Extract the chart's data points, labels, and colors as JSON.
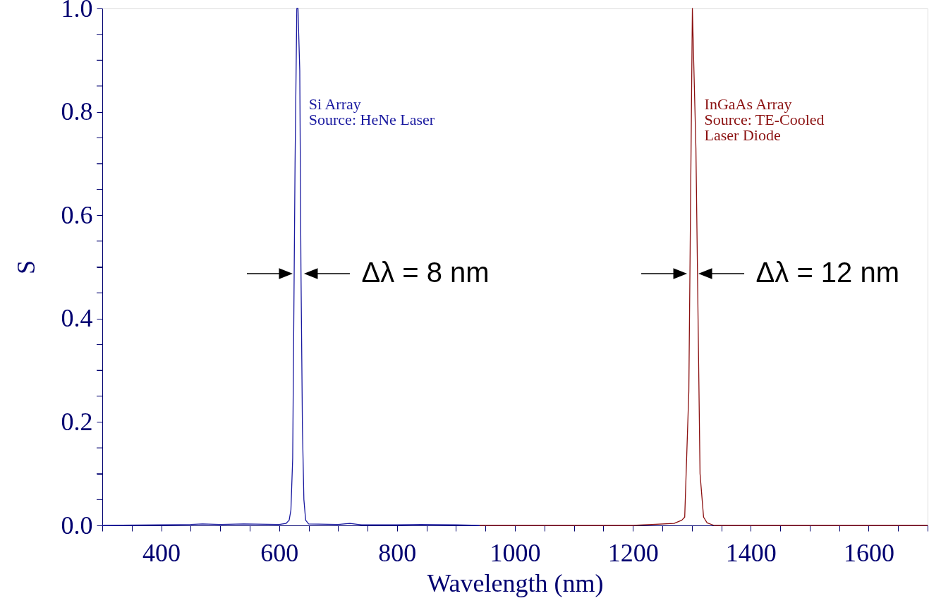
{
  "chart_data": {
    "type": "line",
    "xlabel": "Wavelength (nm)",
    "ylabel": "S",
    "xlim": [
      300,
      1700
    ],
    "ylim": [
      0,
      1.0
    ],
    "xticks": [
      {
        "value": 300,
        "label": null
      },
      {
        "value": 350,
        "label": null
      },
      400,
      {
        "value": 450,
        "label": null
      },
      {
        "value": 500,
        "label": null
      },
      {
        "value": 550,
        "label": null
      },
      600,
      {
        "value": 650,
        "label": null
      },
      {
        "value": 700,
        "label": null
      },
      {
        "value": 750,
        "label": null
      },
      800,
      {
        "value": 850,
        "label": null
      },
      {
        "value": 900,
        "label": null
      },
      {
        "value": 950,
        "label": null
      },
      1000,
      {
        "value": 1050,
        "label": null
      },
      {
        "value": 1100,
        "label": null
      },
      {
        "value": 1150,
        "label": null
      },
      1200,
      {
        "value": 1250,
        "label": null
      },
      {
        "value": 1300,
        "label": null
      },
      {
        "value": 1350,
        "label": null
      },
      1400,
      {
        "value": 1450,
        "label": null
      },
      {
        "value": 1500,
        "label": null
      },
      {
        "value": 1550,
        "label": null
      },
      1600,
      {
        "value": 1650,
        "label": null
      },
      {
        "value": 1700,
        "label": null
      }
    ],
    "yticks": [
      {
        "value": 0,
        "label": "0.0"
      },
      {
        "value": 0.05,
        "label": null
      },
      {
        "value": 0.1,
        "label": null
      },
      {
        "value": 0.15,
        "label": null
      },
      0.2,
      {
        "value": 0.25,
        "label": null
      },
      {
        "value": 0.3,
        "label": null
      },
      {
        "value": 0.35,
        "label": null
      },
      0.4,
      {
        "value": 0.45,
        "label": null
      },
      {
        "value": 0.5,
        "label": null
      },
      {
        "value": 0.55,
        "label": null
      },
      0.6,
      {
        "value": 0.65,
        "label": null
      },
      {
        "value": 0.7,
        "label": null
      },
      {
        "value": 0.75,
        "label": null
      },
      0.8,
      {
        "value": 0.85,
        "label": null
      },
      {
        "value": 0.9,
        "label": null
      },
      {
        "value": 0.95,
        "label": null
      },
      {
        "value": 1.0,
        "label": "1.0"
      }
    ],
    "grid": false,
    "line_style": "solid",
    "marker": "none",
    "series": [
      {
        "name": "Si Array",
        "color": "#1a1aa0",
        "x": [
          300,
          400,
          450,
          470,
          500,
          540,
          600,
          612,
          617,
          620,
          623,
          627,
          630,
          632,
          635,
          637,
          639.5,
          642,
          645,
          650,
          700,
          720,
          740,
          800,
          840,
          900,
          940
        ],
        "values": [
          0,
          0.001,
          0.002,
          0.003,
          0.002,
          0.003,
          0.002,
          0.004,
          0.01,
          0.03,
          0.13,
          0.7,
          1.0,
          1.0,
          0.88,
          0.5,
          0.19,
          0.05,
          0.01,
          0.003,
          0.002,
          0.004,
          0.001,
          0.001,
          0.002,
          0.001,
          0
        ]
      },
      {
        "name": "InGaAs Array",
        "color": "#8b1010",
        "x": [
          940,
          1200,
          1270,
          1283,
          1288,
          1295,
          1301,
          1307,
          1314,
          1320,
          1326,
          1338,
          1400,
          1700
        ],
        "values": [
          0,
          0,
          0.004,
          0.01,
          0.016,
          0.26,
          1.0,
          0.73,
          0.1,
          0.016,
          0.005,
          0,
          0,
          0
        ]
      }
    ],
    "annotations": [
      "Source: HeNe Laser",
      "Source: TE-Cooled\n              Laser Diode",
      {
        "text": "Δλ = 8 nm",
        "x": 632,
        "y": 0.487
      },
      {
        "text": "Δλ = 12 nm",
        "x": 1301,
        "y": 0.487
      }
    ]
  }
}
